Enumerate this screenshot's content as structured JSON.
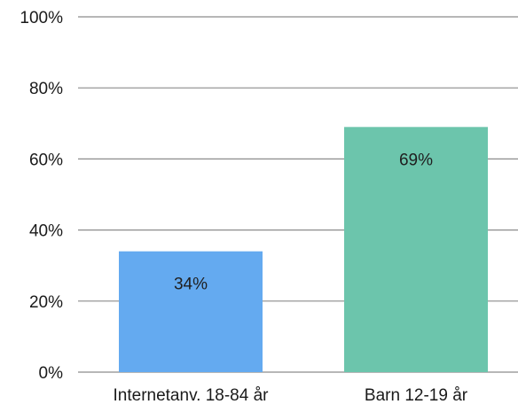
{
  "chart_data": {
    "type": "bar",
    "categories": [
      "Internetanv. 18-84 år",
      "Barn 12-19 år"
    ],
    "values": [
      34,
      69
    ],
    "data_labels": [
      "34%",
      "69%"
    ],
    "colors": [
      "#64aaf0",
      "#6cc5ac"
    ],
    "y_ticks": [
      {
        "value": 0,
        "label": "0%"
      },
      {
        "value": 20,
        "label": "20%"
      },
      {
        "value": 40,
        "label": "40%"
      },
      {
        "value": 60,
        "label": "60%"
      },
      {
        "value": 80,
        "label": "80%"
      },
      {
        "value": 100,
        "label": "100%"
      }
    ],
    "ylim": [
      0,
      100
    ],
    "grid": true,
    "title": "",
    "xlabel": "",
    "ylabel": ""
  }
}
